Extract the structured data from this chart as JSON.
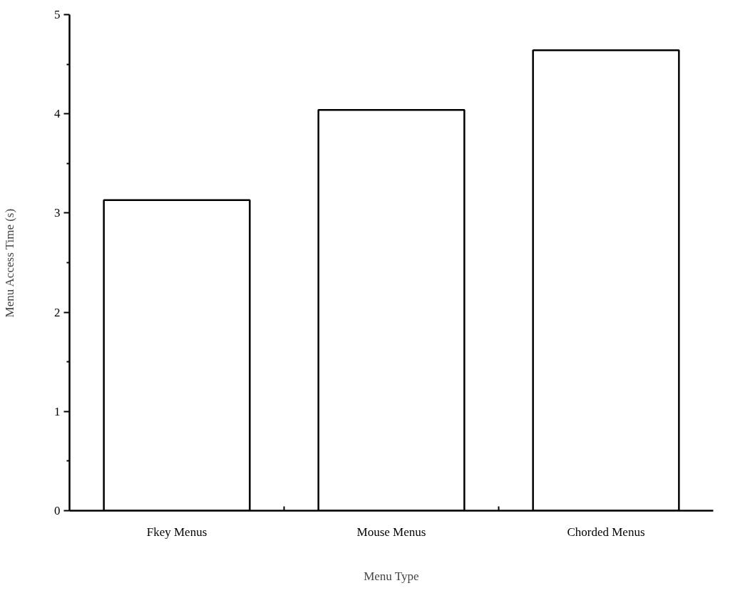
{
  "chart_data": {
    "type": "bar",
    "xlabel": "Menu Type",
    "ylabel": "Menu Access Time (s)",
    "categories": [
      "Fkey Menus",
      "Mouse Menus",
      "Chorded Menus"
    ],
    "values": [
      3.13,
      4.04,
      4.64
    ],
    "color": "#ffffff",
    "ylim": [
      0,
      5
    ],
    "yticks": [
      0,
      1,
      2,
      3,
      4,
      5
    ],
    "grid": false
  }
}
